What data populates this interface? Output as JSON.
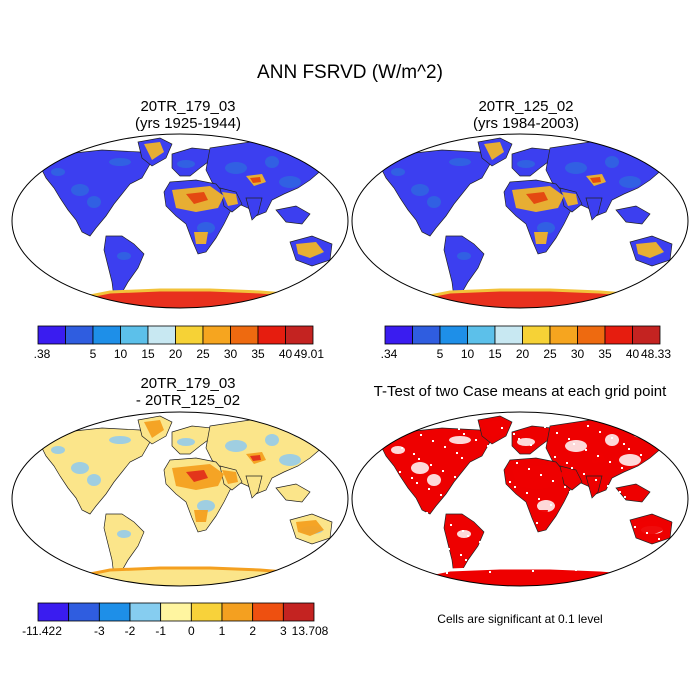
{
  "figure": {
    "title": "ANN FSRVD (W/m^2)",
    "panels": [
      {
        "id": "case1",
        "title_line1": "20TR_179_03",
        "title_line2": "(yrs 1925-1944)",
        "colorbar": {
          "labels": [
            ".38",
            "5",
            "10",
            "15",
            "20",
            "25",
            "30",
            "35",
            "40",
            "49.01"
          ],
          "colors": [
            "#3a1cf0",
            "#2f5de0",
            "#1e8fe8",
            "#5cc0ea",
            "#c8e8f2",
            "#f6d236",
            "#f6a51f",
            "#ee6a10",
            "#e61d0f",
            "#c42321"
          ]
        },
        "palette": {
          "land": "#3c3ff0",
          "land_alt": "#2f66e0",
          "desert": "#f0b428",
          "desert_hot": "#e44410",
          "ice": "#e8301e",
          "ice_edge": "#f2c23a"
        }
      },
      {
        "id": "case2",
        "title_line1": "20TR_125_02",
        "title_line2": "(yrs 1984-2003)",
        "colorbar": {
          "labels": [
            ".34",
            "5",
            "10",
            "15",
            "20",
            "25",
            "30",
            "35",
            "40",
            "48.33"
          ],
          "colors": [
            "#3a1cf0",
            "#2f5de0",
            "#1e8fe8",
            "#5cc0ea",
            "#c8e8f2",
            "#f6d236",
            "#f6a51f",
            "#ee6a10",
            "#e61d0f",
            "#c42321"
          ]
        },
        "palette": {
          "land": "#3c3ff0",
          "land_alt": "#2f66e0",
          "desert": "#f0b428",
          "desert_hot": "#e44410",
          "ice": "#e8301e",
          "ice_edge": "#f2c23a"
        }
      },
      {
        "id": "diff",
        "title_line1": "20TR_179_03",
        "title_line2": "- 20TR_125_02",
        "colorbar": {
          "labels": [
            "-11.422",
            "-3",
            "-2",
            "-1",
            "0",
            "1",
            "2",
            "3",
            "13.708"
          ],
          "colors": [
            "#3a1cf0",
            "#2f5de0",
            "#1e8fe8",
            "#86cdf0",
            "#fff5a0",
            "#f8d23a",
            "#f4a020",
            "#ee5010",
            "#c42321"
          ]
        },
        "palette": {
          "land": "#fbe58a",
          "land_alt": "#8ecaf0",
          "desert": "#f4a020",
          "desert_hot": "#e2301a",
          "ice": "#fbe58a",
          "ice_edge": "#f4a020"
        }
      },
      {
        "id": "ttest",
        "title": "T-Test of two Case means at each grid point",
        "note": "Cells are significant at 0.1 level",
        "palette": {
          "land": "#ee0000",
          "land_alt": "#ffffff",
          "desert": "#ee0000",
          "desert_hot": "#ee0000",
          "ice": "#ee0000",
          "ice_edge": "#ffffff"
        }
      }
    ]
  }
}
